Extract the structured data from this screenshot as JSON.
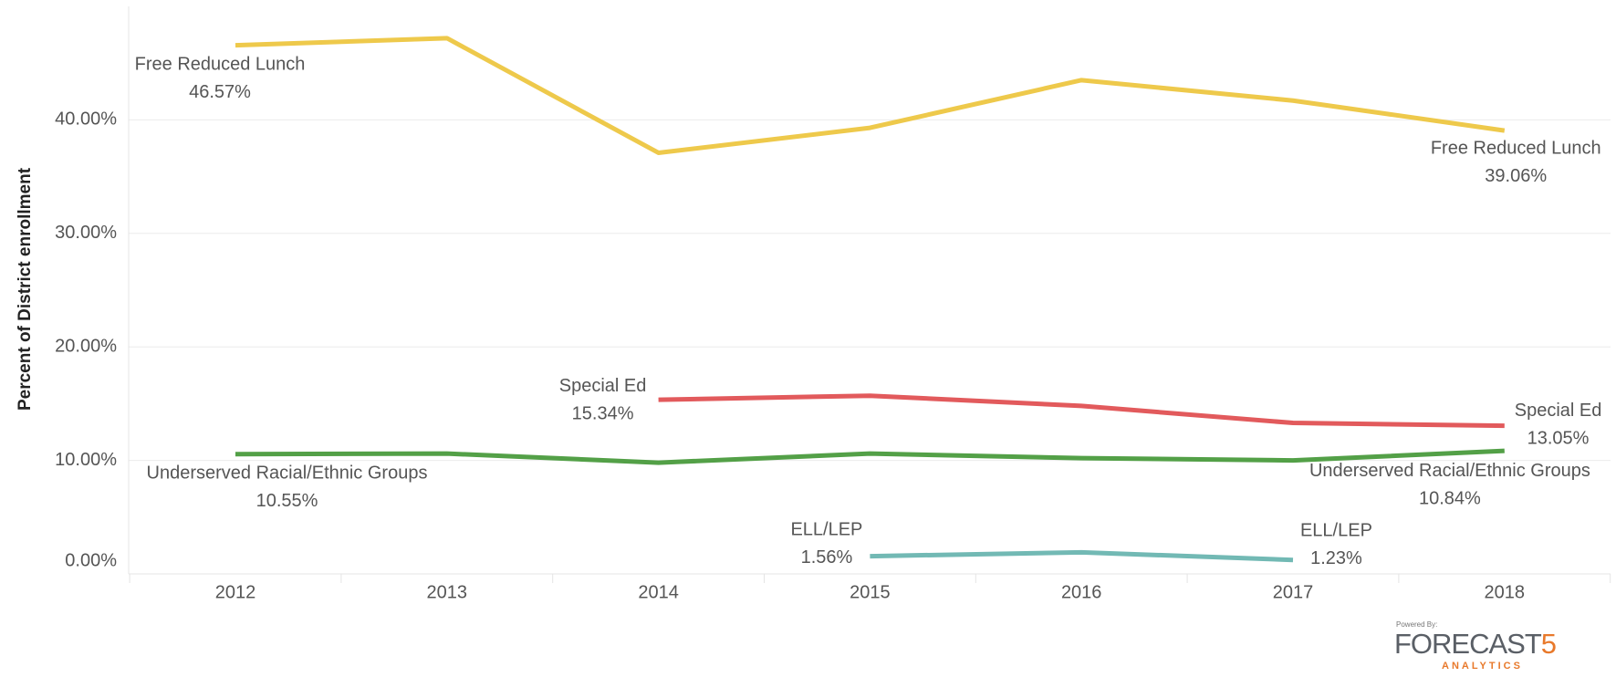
{
  "chart_data": {
    "type": "line",
    "y_label": "Percent of District enrollment",
    "categories": [
      "2012",
      "2013",
      "2014",
      "2015",
      "2016",
      "2017",
      "2018"
    ],
    "series": [
      {
        "name": "Free Reduced Lunch",
        "color": "#eec94b",
        "values": [
          46.57,
          47.2,
          37.1,
          39.3,
          43.5,
          41.7,
          39.06
        ],
        "value_labels": [
          "46.57%",
          null,
          null,
          null,
          null,
          null,
          "39.06%"
        ]
      },
      {
        "name": "Special Ed",
        "color": "#e25a5c",
        "values": [
          null,
          null,
          15.34,
          15.7,
          14.8,
          13.3,
          13.05
        ],
        "value_labels": [
          null,
          null,
          "15.34%",
          null,
          null,
          null,
          "13.05%"
        ]
      },
      {
        "name": "Underserved Racial/Ethnic Groups",
        "color": "#53a047",
        "values": [
          10.55,
          10.6,
          9.8,
          10.6,
          10.2,
          10.0,
          10.84
        ],
        "value_labels": [
          "10.55%",
          null,
          null,
          null,
          null,
          null,
          "10.84%"
        ]
      },
      {
        "name": "ELL/LEP",
        "color": "#72b9b4",
        "values": [
          null,
          null,
          null,
          1.56,
          1.9,
          1.23,
          null
        ],
        "value_labels": [
          null,
          null,
          null,
          "1.56%",
          null,
          "1.23%",
          null
        ]
      }
    ],
    "ylim": [
      0,
      50
    ],
    "yticks": [
      {
        "value": 0,
        "label": "0.00%"
      },
      {
        "value": 10,
        "label": "10.00%"
      },
      {
        "value": 20,
        "label": "20.00%"
      },
      {
        "value": 30,
        "label": "30.00%"
      },
      {
        "value": 40,
        "label": "40.00%"
      }
    ],
    "grid": true
  },
  "logo": {
    "caption": "Powered By:",
    "brand": "FORECAST",
    "brand_number": "5",
    "tagline": "ANALYTICS"
  }
}
